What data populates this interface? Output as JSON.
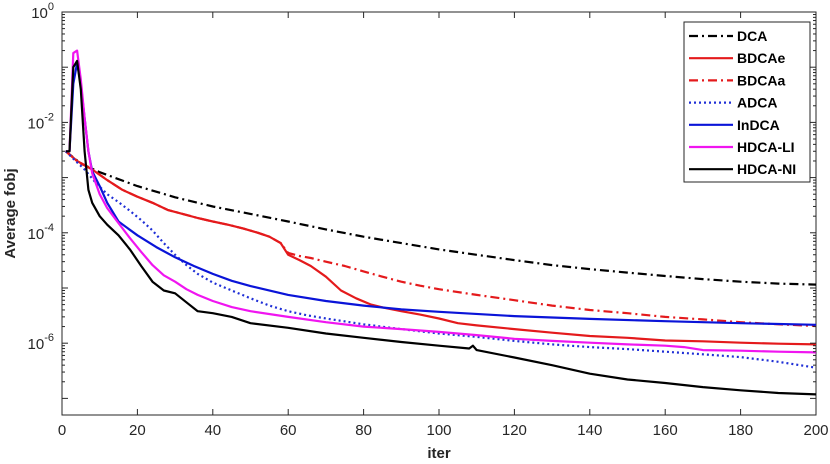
{
  "chart_data": {
    "type": "line",
    "title": "",
    "xlabel": "iter",
    "ylabel": "Average fobj",
    "xlim": [
      0,
      200
    ],
    "ylim": [
      5e-08,
      1
    ],
    "yscale": "log",
    "xticks": [
      0,
      20,
      40,
      60,
      80,
      100,
      120,
      140,
      160,
      180,
      200
    ],
    "xtick_labels": [
      "0",
      "20",
      "40",
      "60",
      "80",
      "100",
      "120",
      "140",
      "160",
      "180",
      "200"
    ],
    "yticks": [
      1e-06,
      0.0001,
      0.01,
      1
    ],
    "ytick_labels": [
      {
        "base": "10",
        "exp": "-6"
      },
      {
        "base": "10",
        "exp": "-4"
      },
      {
        "base": "10",
        "exp": "-2"
      },
      {
        "base": "10",
        "exp": "0"
      }
    ],
    "grid": false,
    "legend_position": "top-right",
    "series": [
      {
        "name": "DCA",
        "color": "#000000",
        "style": "dashdot",
        "points": [
          [
            1,
            0.003
          ],
          [
            5,
            0.0018
          ],
          [
            10,
            0.00125
          ],
          [
            20,
            0.0007
          ],
          [
            30,
            0.00044
          ],
          [
            40,
            0.0003
          ],
          [
            50,
            0.00022
          ],
          [
            60,
            0.00016
          ],
          [
            70,
            0.000115
          ],
          [
            80,
            8.5e-05
          ],
          [
            90,
            6.5e-05
          ],
          [
            100,
            5e-05
          ],
          [
            110,
            4e-05
          ],
          [
            120,
            3.2e-05
          ],
          [
            130,
            2.6e-05
          ],
          [
            140,
            2.2e-05
          ],
          [
            150,
            1.9e-05
          ],
          [
            160,
            1.65e-05
          ],
          [
            170,
            1.45e-05
          ],
          [
            180,
            1.3e-05
          ],
          [
            190,
            1.2e-05
          ],
          [
            200,
            1.15e-05
          ]
        ]
      },
      {
        "name": "BDCAe",
        "color": "#e41a1c",
        "style": "solid",
        "points": [
          [
            1,
            0.003
          ],
          [
            4,
            0.002
          ],
          [
            8,
            0.0014
          ],
          [
            12,
            0.0009
          ],
          [
            16,
            0.0006
          ],
          [
            20,
            0.00045
          ],
          [
            24,
            0.00035
          ],
          [
            28,
            0.00026
          ],
          [
            32,
            0.00022
          ],
          [
            36,
            0.000185
          ],
          [
            40,
            0.00016
          ],
          [
            44,
            0.00014
          ],
          [
            48,
            0.00012
          ],
          [
            52,
            0.0001
          ],
          [
            55,
            8.5e-05
          ],
          [
            58,
            6.5e-05
          ],
          [
            60,
            4e-05
          ],
          [
            63,
            3.2e-05
          ],
          [
            66,
            2.5e-05
          ],
          [
            70,
            1.6e-05
          ],
          [
            74,
            9e-06
          ],
          [
            78,
            6.5e-06
          ],
          [
            82,
            5e-06
          ],
          [
            86,
            4.3e-06
          ],
          [
            90,
            3.8e-06
          ],
          [
            95,
            3.3e-06
          ],
          [
            100,
            2.8e-06
          ],
          [
            105,
            2.3e-06
          ],
          [
            110,
            2.1e-06
          ],
          [
            120,
            1.8e-06
          ],
          [
            130,
            1.55e-06
          ],
          [
            140,
            1.35e-06
          ],
          [
            150,
            1.25e-06
          ],
          [
            160,
            1.12e-06
          ],
          [
            170,
            1.08e-06
          ],
          [
            180,
            1.02e-06
          ],
          [
            190,
            9.8e-07
          ],
          [
            200,
            9.5e-07
          ]
        ]
      },
      {
        "name": "BDCAa",
        "color": "#e41a1c",
        "style": "dashdot",
        "points": [
          [
            1,
            0.003
          ],
          [
            4,
            0.002
          ],
          [
            8,
            0.0014
          ],
          [
            12,
            0.0009
          ],
          [
            16,
            0.0006
          ],
          [
            20,
            0.00045
          ],
          [
            24,
            0.00035
          ],
          [
            28,
            0.00026
          ],
          [
            32,
            0.00022
          ],
          [
            36,
            0.000185
          ],
          [
            40,
            0.00016
          ],
          [
            44,
            0.00014
          ],
          [
            48,
            0.00012
          ],
          [
            52,
            0.0001
          ],
          [
            55,
            8.5e-05
          ],
          [
            58,
            6.5e-05
          ],
          [
            60,
            4.3e-05
          ],
          [
            63,
            3.8e-05
          ],
          [
            66,
            3.5e-05
          ],
          [
            70,
            3e-05
          ],
          [
            75,
            2.5e-05
          ],
          [
            80,
            2e-05
          ],
          [
            85,
            1.6e-05
          ],
          [
            90,
            1.3e-05
          ],
          [
            95,
            1.1e-05
          ],
          [
            100,
            9.5e-06
          ],
          [
            110,
            7.5e-06
          ],
          [
            120,
            6e-06
          ],
          [
            130,
            4.8e-06
          ],
          [
            140,
            4e-06
          ],
          [
            150,
            3.5e-06
          ],
          [
            160,
            3e-06
          ],
          [
            170,
            2.7e-06
          ],
          [
            180,
            2.4e-06
          ],
          [
            190,
            2.2e-06
          ],
          [
            200,
            2.05e-06
          ]
        ]
      },
      {
        "name": "ADCA",
        "color": "#1f2fd6",
        "style": "dotted",
        "points": [
          [
            1,
            0.003
          ],
          [
            3,
            0.0022
          ],
          [
            6,
            0.0014
          ],
          [
            9,
            0.0008
          ],
          [
            12,
            0.0005
          ],
          [
            15,
            0.00036
          ],
          [
            18,
            0.00025
          ],
          [
            21,
            0.00017
          ],
          [
            24,
            0.00011
          ],
          [
            27,
            6.5e-05
          ],
          [
            30,
            4e-05
          ],
          [
            33,
            2.6e-05
          ],
          [
            36,
            1.8e-05
          ],
          [
            40,
            1.25e-05
          ],
          [
            45,
            9e-06
          ],
          [
            50,
            6.5e-06
          ],
          [
            55,
            4.8e-06
          ],
          [
            60,
            3.8e-06
          ],
          [
            65,
            3.2e-06
          ],
          [
            70,
            2.8e-06
          ],
          [
            80,
            2.2e-06
          ],
          [
            90,
            1.8e-06
          ],
          [
            100,
            1.5e-06
          ],
          [
            110,
            1.3e-06
          ],
          [
            120,
            1.1e-06
          ],
          [
            130,
            9.5e-07
          ],
          [
            140,
            8.5e-07
          ],
          [
            150,
            7.8e-07
          ],
          [
            160,
            7e-07
          ],
          [
            170,
            6.3e-07
          ],
          [
            180,
            5.6e-07
          ],
          [
            190,
            4.6e-07
          ],
          [
            200,
            3.6e-07
          ]
        ]
      },
      {
        "name": "InDCA",
        "color": "#0a14d8",
        "style": "solid",
        "points": [
          [
            1,
            0.003
          ],
          [
            2,
            0.003
          ],
          [
            3,
            0.05
          ],
          [
            4,
            0.12
          ],
          [
            5,
            0.05
          ],
          [
            6,
            0.012
          ],
          [
            7,
            0.003
          ],
          [
            8,
            0.0013
          ],
          [
            10,
            0.0007
          ],
          [
            12,
            0.00035
          ],
          [
            15,
            0.00016
          ],
          [
            20,
            9e-05
          ],
          [
            25,
            5.5e-05
          ],
          [
            30,
            3.6e-05
          ],
          [
            35,
            2.5e-05
          ],
          [
            40,
            1.8e-05
          ],
          [
            45,
            1.35e-05
          ],
          [
            50,
            1.08e-05
          ],
          [
            60,
            7.5e-06
          ],
          [
            70,
            5.8e-06
          ],
          [
            80,
            4.8e-06
          ],
          [
            90,
            4.1e-06
          ],
          [
            100,
            3.7e-06
          ],
          [
            120,
            3.1e-06
          ],
          [
            140,
            2.75e-06
          ],
          [
            160,
            2.5e-06
          ],
          [
            180,
            2.3e-06
          ],
          [
            200,
            2.15e-06
          ]
        ]
      },
      {
        "name": "HDCA-LI",
        "color": "#f015f0",
        "style": "solid",
        "points": [
          [
            1,
            0.003
          ],
          [
            2,
            0.003
          ],
          [
            3,
            0.18
          ],
          [
            4,
            0.2
          ],
          [
            5,
            0.06
          ],
          [
            6,
            0.012
          ],
          [
            7,
            0.003
          ],
          [
            8,
            0.0012
          ],
          [
            10,
            0.0005
          ],
          [
            12,
            0.00028
          ],
          [
            15,
            0.00015
          ],
          [
            18,
            8e-05
          ],
          [
            21,
            4.5e-05
          ],
          [
            24,
            2.6e-05
          ],
          [
            27,
            1.7e-05
          ],
          [
            30,
            1.3e-05
          ],
          [
            33,
            9.5e-06
          ],
          [
            36,
            7.5e-06
          ],
          [
            40,
            5.8e-06
          ],
          [
            45,
            4.5e-06
          ],
          [
            50,
            3.8e-06
          ],
          [
            60,
            3e-06
          ],
          [
            70,
            2.4e-06
          ],
          [
            80,
            2e-06
          ],
          [
            90,
            1.8e-06
          ],
          [
            100,
            1.6e-06
          ],
          [
            110,
            1.4e-06
          ],
          [
            120,
            1.2e-06
          ],
          [
            130,
            1.1e-06
          ],
          [
            140,
            1.02e-06
          ],
          [
            150,
            9.5e-07
          ],
          [
            160,
            9e-07
          ],
          [
            165,
            8.5e-07
          ],
          [
            170,
            7.5e-07
          ],
          [
            180,
            7.3e-07
          ],
          [
            190,
            7e-07
          ],
          [
            200,
            6.8e-07
          ]
        ]
      },
      {
        "name": "HDCA-NI",
        "color": "#000000",
        "style": "solid",
        "points": [
          [
            1,
            0.003
          ],
          [
            2,
            0.003
          ],
          [
            3,
            0.1
          ],
          [
            4,
            0.13
          ],
          [
            5,
            0.04
          ],
          [
            6,
            0.003
          ],
          [
            7,
            0.0006
          ],
          [
            8,
            0.00035
          ],
          [
            10,
            0.0002
          ],
          [
            12,
            0.00014
          ],
          [
            15,
            9e-05
          ],
          [
            18,
            5e-05
          ],
          [
            21,
            2.5e-05
          ],
          [
            24,
            1.3e-05
          ],
          [
            27,
            9e-06
          ],
          [
            30,
            8e-06
          ],
          [
            33,
            5.5e-06
          ],
          [
            36,
            3.8e-06
          ],
          [
            40,
            3.5e-06
          ],
          [
            45,
            3e-06
          ],
          [
            50,
            2.3e-06
          ],
          [
            60,
            1.9e-06
          ],
          [
            70,
            1.5e-06
          ],
          [
            80,
            1.25e-06
          ],
          [
            90,
            1.05e-06
          ],
          [
            100,
            9e-07
          ],
          [
            108,
            8e-07
          ],
          [
            109,
            9e-07
          ],
          [
            110,
            7.5e-07
          ],
          [
            120,
            5.5e-07
          ],
          [
            130,
            4e-07
          ],
          [
            140,
            2.8e-07
          ],
          [
            150,
            2.2e-07
          ],
          [
            160,
            1.9e-07
          ],
          [
            170,
            1.6e-07
          ],
          [
            180,
            1.4e-07
          ],
          [
            190,
            1.25e-07
          ],
          [
            200,
            1.18e-07
          ]
        ]
      }
    ]
  }
}
